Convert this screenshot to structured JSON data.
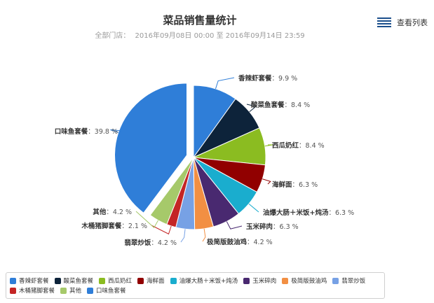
{
  "header": {
    "title": "菜品销售量统计",
    "subtitle_store": "全部门店：",
    "subtitle_range": "2016年09月08日 00:00 至 2016年09月14日 23:59"
  },
  "toolbar": {
    "view_list_label": "查看列表",
    "view_list_icon": "list-icon"
  },
  "chart_data": {
    "type": "pie",
    "categories": [
      "香辣虾套餐",
      "酸菜鱼套餐",
      "西瓜奶红",
      "海鲜面",
      "油爆大肠＋米饭+炖汤",
      "玉米碎肉",
      "极简版鼓油鸡",
      "翡翠炒饭",
      "木桶猪脚套餐",
      "其他",
      "口味鱼套餐"
    ],
    "values": [
      9.9,
      8.4,
      8.4,
      6.3,
      6.3,
      6.3,
      4.2,
      4.2,
      2.1,
      4.2,
      39.8
    ],
    "labels": [
      "9.9 %",
      "8.4 %",
      "8.4 %",
      "6.3 %",
      "6.3 %",
      "6.3 %",
      "4.2 %",
      "4.2 %",
      "2.1 %",
      "4.2 %",
      "39.8 %"
    ],
    "colors": [
      "#2f7ed8",
      "#0d233a",
      "#8bbc21",
      "#910000",
      "#1aadce",
      "#492970",
      "#f28f43",
      "#77a1e5",
      "#c42525",
      "#a6c96a",
      "#2f7ed8"
    ],
    "sliced": "口味鱼套餐",
    "legend_position": "bottom"
  }
}
